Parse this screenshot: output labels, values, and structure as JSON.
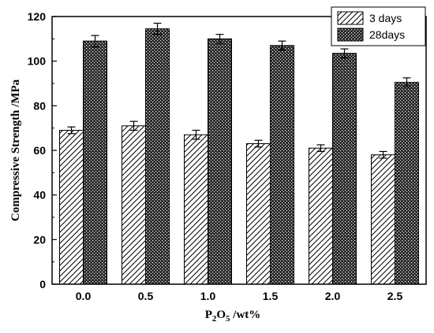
{
  "chart_data": {
    "type": "bar",
    "categories": [
      "0.0",
      "0.5",
      "1.0",
      "1.5",
      "2.0",
      "2.5"
    ],
    "series": [
      {
        "name": "3 days",
        "values": [
          69,
          71,
          67,
          63,
          61,
          58
        ],
        "errors": [
          1.5,
          2,
          2,
          1.5,
          1.5,
          1.5
        ]
      },
      {
        "name": "28days",
        "values": [
          109,
          114.5,
          110,
          107,
          103.5,
          90.5
        ],
        "errors": [
          2.5,
          2.5,
          2,
          2,
          2,
          2
        ]
      }
    ],
    "ylabel": "Compressive Strength /MPa",
    "xlabel": {
      "main": "P",
      "sub1": "2",
      "mid": "O",
      "sub2": "5",
      "tail": " /wt%"
    },
    "ylim": [
      0,
      120
    ],
    "yticks": [
      0,
      20,
      40,
      60,
      80,
      100,
      120
    ],
    "legend_position": "top-right",
    "grid": false,
    "colors": {
      "axis": "#000000",
      "bar_stroke": "#000000",
      "pattern_3days": "hatched-diagonal",
      "pattern_28days": "dense-crosshatch"
    }
  }
}
